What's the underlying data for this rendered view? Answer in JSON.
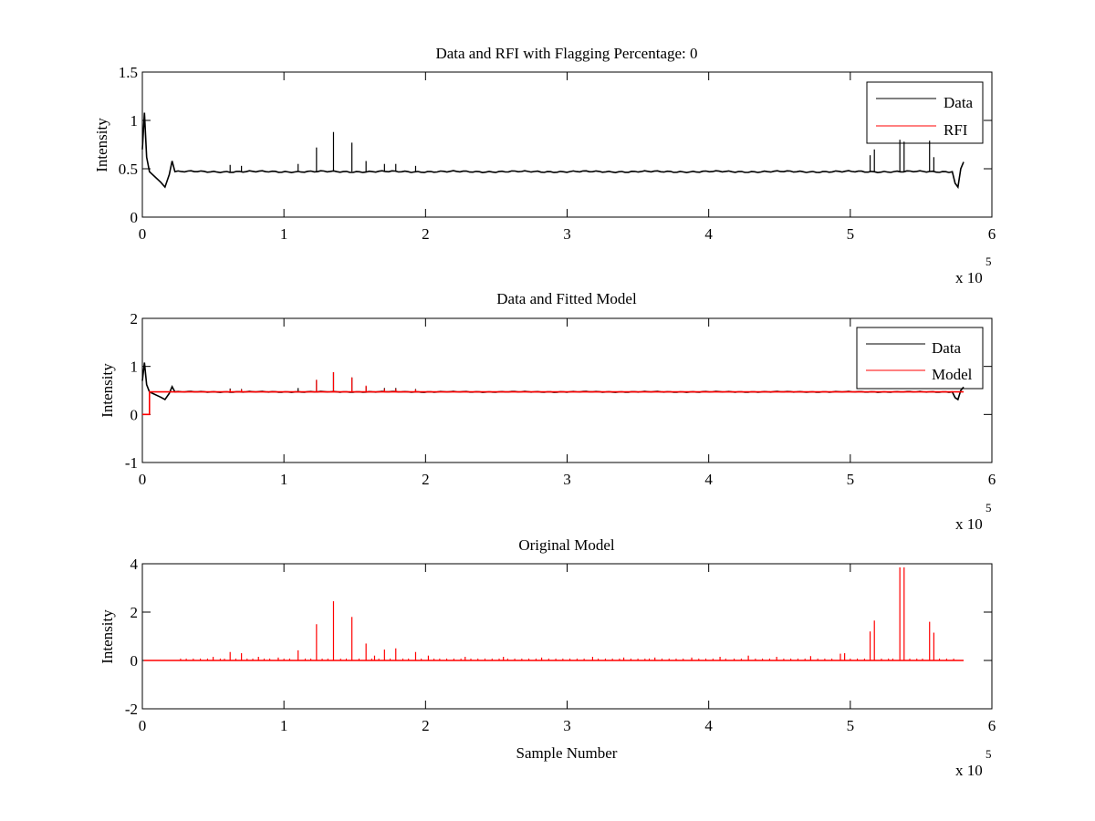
{
  "figure": {
    "background": "#ffffff",
    "data_color": "#000000",
    "model_color": "#ff0000"
  },
  "chart_data": [
    {
      "type": "line",
      "title": "Data and RFI with Flagging Percentage: 0",
      "xlabel": "",
      "ylabel": "Intensity",
      "xlim": [
        0,
        6
      ],
      "ylim": [
        0,
        1.5
      ],
      "x_exponent_label": "x 10",
      "x_exponent_power": "5",
      "xticks": [
        0,
        1,
        2,
        3,
        4,
        5,
        6
      ],
      "yticks": [
        0,
        0.5,
        1,
        1.5
      ],
      "ytick_labels": [
        "0",
        "0.5",
        "1",
        "1.5"
      ],
      "grid": false,
      "legend_position": "top-right",
      "legend": [
        "Data",
        "RFI"
      ],
      "series": [
        {
          "name": "Data",
          "color": "#000000",
          "baseline": 0.47,
          "x_end": 5.8,
          "features": [
            {
              "x": 0.0,
              "y": 0.7
            },
            {
              "x": 0.015,
              "y": 1.08
            },
            {
              "x": 0.03,
              "y": 0.62
            },
            {
              "x": 0.05,
              "y": 0.47
            },
            {
              "x": 0.13,
              "y": 0.36
            },
            {
              "x": 0.16,
              "y": 0.31
            },
            {
              "x": 0.19,
              "y": 0.44
            },
            {
              "x": 0.21,
              "y": 0.58
            },
            {
              "x": 0.23,
              "y": 0.47
            },
            {
              "x": 5.72,
              "y": 0.47
            },
            {
              "x": 5.74,
              "y": 0.35
            },
            {
              "x": 5.76,
              "y": 0.31
            },
            {
              "x": 5.78,
              "y": 0.5
            },
            {
              "x": 5.8,
              "y": 0.57
            }
          ],
          "spikes": [
            {
              "x": 0.62,
              "y": 0.54
            },
            {
              "x": 0.7,
              "y": 0.53
            },
            {
              "x": 1.1,
              "y": 0.55
            },
            {
              "x": 1.23,
              "y": 0.72
            },
            {
              "x": 1.35,
              "y": 0.88
            },
            {
              "x": 1.48,
              "y": 0.77
            },
            {
              "x": 1.58,
              "y": 0.58
            },
            {
              "x": 1.71,
              "y": 0.55
            },
            {
              "x": 1.79,
              "y": 0.55
            },
            {
              "x": 1.93,
              "y": 0.53
            },
            {
              "x": 5.14,
              "y": 0.64
            },
            {
              "x": 5.17,
              "y": 0.7
            },
            {
              "x": 5.35,
              "y": 0.8
            },
            {
              "x": 5.38,
              "y": 0.78
            },
            {
              "x": 5.56,
              "y": 0.79
            },
            {
              "x": 5.59,
              "y": 0.62
            }
          ]
        },
        {
          "name": "RFI",
          "color": "#ff0000",
          "values": []
        }
      ]
    },
    {
      "type": "line",
      "title": "Data and Fitted Model",
      "xlabel": "",
      "ylabel": "Intensity",
      "xlim": [
        0,
        6
      ],
      "ylim": [
        -1,
        2
      ],
      "x_exponent_label": "x 10",
      "x_exponent_power": "5",
      "xticks": [
        0,
        1,
        2,
        3,
        4,
        5,
        6
      ],
      "yticks": [
        -1,
        0,
        1,
        2
      ],
      "ytick_labels": [
        "-1",
        "0",
        "1",
        "2"
      ],
      "grid": false,
      "legend_position": "top-right",
      "legend": [
        "Data",
        "Model"
      ],
      "series": [
        {
          "name": "Data",
          "color": "#000000",
          "baseline": 0.47,
          "x_end": 5.8,
          "features": [
            {
              "x": 0.0,
              "y": 0.7
            },
            {
              "x": 0.015,
              "y": 1.08
            },
            {
              "x": 0.03,
              "y": 0.62
            },
            {
              "x": 0.05,
              "y": 0.47
            },
            {
              "x": 0.13,
              "y": 0.36
            },
            {
              "x": 0.16,
              "y": 0.31
            },
            {
              "x": 0.19,
              "y": 0.44
            },
            {
              "x": 0.21,
              "y": 0.58
            },
            {
              "x": 0.23,
              "y": 0.47
            },
            {
              "x": 5.72,
              "y": 0.47
            },
            {
              "x": 5.74,
              "y": 0.35
            },
            {
              "x": 5.76,
              "y": 0.31
            },
            {
              "x": 5.78,
              "y": 0.5
            },
            {
              "x": 5.8,
              "y": 0.57
            }
          ],
          "spikes": [
            {
              "x": 0.62,
              "y": 0.54
            },
            {
              "x": 0.7,
              "y": 0.53
            },
            {
              "x": 1.1,
              "y": 0.55
            },
            {
              "x": 1.23,
              "y": 0.72
            },
            {
              "x": 1.35,
              "y": 0.88
            },
            {
              "x": 1.48,
              "y": 0.77
            },
            {
              "x": 1.58,
              "y": 0.58
            },
            {
              "x": 1.71,
              "y": 0.55
            },
            {
              "x": 1.79,
              "y": 0.55
            },
            {
              "x": 1.93,
              "y": 0.53
            }
          ]
        },
        {
          "name": "Model",
          "color": "#ff0000",
          "baseline": 0.47,
          "x_end": 5.8,
          "features": [
            {
              "x": 0.0,
              "y": 0.0
            },
            {
              "x": 0.05,
              "y": 0.0
            },
            {
              "x": 0.05,
              "y": 0.47
            }
          ],
          "spikes": [
            {
              "x": 1.23,
              "y": 0.72
            },
            {
              "x": 1.35,
              "y": 0.88
            },
            {
              "x": 1.48,
              "y": 0.77
            },
            {
              "x": 1.58,
              "y": 0.6
            },
            {
              "x": 1.71,
              "y": 0.53
            },
            {
              "x": 1.79,
              "y": 0.53
            },
            {
              "x": 1.93,
              "y": 0.52
            },
            {
              "x": 0.62,
              "y": 0.52
            },
            {
              "x": 0.7,
              "y": 0.52
            }
          ]
        }
      ]
    },
    {
      "type": "line",
      "title": "Original Model",
      "xlabel": "Sample Number",
      "ylabel": "Intensity",
      "xlim": [
        0,
        6
      ],
      "ylim": [
        -2,
        4
      ],
      "x_exponent_label": "x 10",
      "x_exponent_power": "5",
      "xticks": [
        0,
        1,
        2,
        3,
        4,
        5,
        6
      ],
      "yticks": [
        -2,
        0,
        2,
        4
      ],
      "ytick_labels": [
        "-2",
        "0",
        "2",
        "4"
      ],
      "grid": false,
      "legend_position": "none",
      "legend": [],
      "series": [
        {
          "name": "Original Model",
          "color": "#ff0000",
          "baseline": 0.0,
          "x_start": 0.01,
          "x_end": 5.8,
          "features": [],
          "spikes": [
            {
              "x": 0.5,
              "y": 0.15
            },
            {
              "x": 0.62,
              "y": 0.35
            },
            {
              "x": 0.7,
              "y": 0.3
            },
            {
              "x": 0.82,
              "y": 0.15
            },
            {
              "x": 0.96,
              "y": 0.12
            },
            {
              "x": 1.1,
              "y": 0.42
            },
            {
              "x": 1.23,
              "y": 1.5
            },
            {
              "x": 1.35,
              "y": 2.45
            },
            {
              "x": 1.48,
              "y": 1.8
            },
            {
              "x": 1.58,
              "y": 0.7
            },
            {
              "x": 1.64,
              "y": 0.2
            },
            {
              "x": 1.71,
              "y": 0.45
            },
            {
              "x": 1.79,
              "y": 0.5
            },
            {
              "x": 1.93,
              "y": 0.35
            },
            {
              "x": 2.02,
              "y": 0.2
            },
            {
              "x": 2.28,
              "y": 0.15
            },
            {
              "x": 2.55,
              "y": 0.15
            },
            {
              "x": 2.82,
              "y": 0.12
            },
            {
              "x": 3.18,
              "y": 0.15
            },
            {
              "x": 3.4,
              "y": 0.12
            },
            {
              "x": 3.62,
              "y": 0.12
            },
            {
              "x": 3.88,
              "y": 0.12
            },
            {
              "x": 4.08,
              "y": 0.15
            },
            {
              "x": 4.28,
              "y": 0.2
            },
            {
              "x": 4.48,
              "y": 0.15
            },
            {
              "x": 4.72,
              "y": 0.18
            },
            {
              "x": 4.93,
              "y": 0.28
            },
            {
              "x": 4.96,
              "y": 0.3
            },
            {
              "x": 5.14,
              "y": 1.2
            },
            {
              "x": 5.17,
              "y": 1.65
            },
            {
              "x": 5.35,
              "y": 3.85
            },
            {
              "x": 5.38,
              "y": 3.85
            },
            {
              "x": 5.56,
              "y": 1.6
            },
            {
              "x": 5.59,
              "y": 1.15
            }
          ],
          "small_spike_xs": [
            0.27,
            0.31,
            0.36,
            0.41,
            0.46,
            0.55,
            0.58,
            0.66,
            0.74,
            0.78,
            0.86,
            0.9,
            1.0,
            1.04,
            1.15,
            1.19,
            1.27,
            1.31,
            1.4,
            1.44,
            1.53,
            1.62,
            1.67,
            1.75,
            1.84,
            1.88,
            1.97,
            2.06,
            2.1,
            2.15,
            2.2,
            2.25,
            2.32,
            2.37,
            2.42,
            2.47,
            2.52,
            2.58,
            2.63,
            2.68,
            2.73,
            2.78,
            2.87,
            2.92,
            2.97,
            3.02,
            3.07,
            3.12,
            3.22,
            3.27,
            3.32,
            3.37,
            3.45,
            3.5,
            3.55,
            3.58,
            3.67,
            3.72,
            3.77,
            3.82,
            3.93,
            3.98,
            4.03,
            4.12,
            4.18,
            4.23,
            4.33,
            4.38,
            4.43,
            4.53,
            4.58,
            4.63,
            4.68,
            4.77,
            4.82,
            4.87,
            5.0,
            5.05,
            5.1,
            5.22,
            5.27,
            5.3,
            5.42,
            5.47,
            5.51,
            5.63,
            5.68,
            5.73
          ],
          "small_spike_height": 0.08
        }
      ]
    }
  ]
}
